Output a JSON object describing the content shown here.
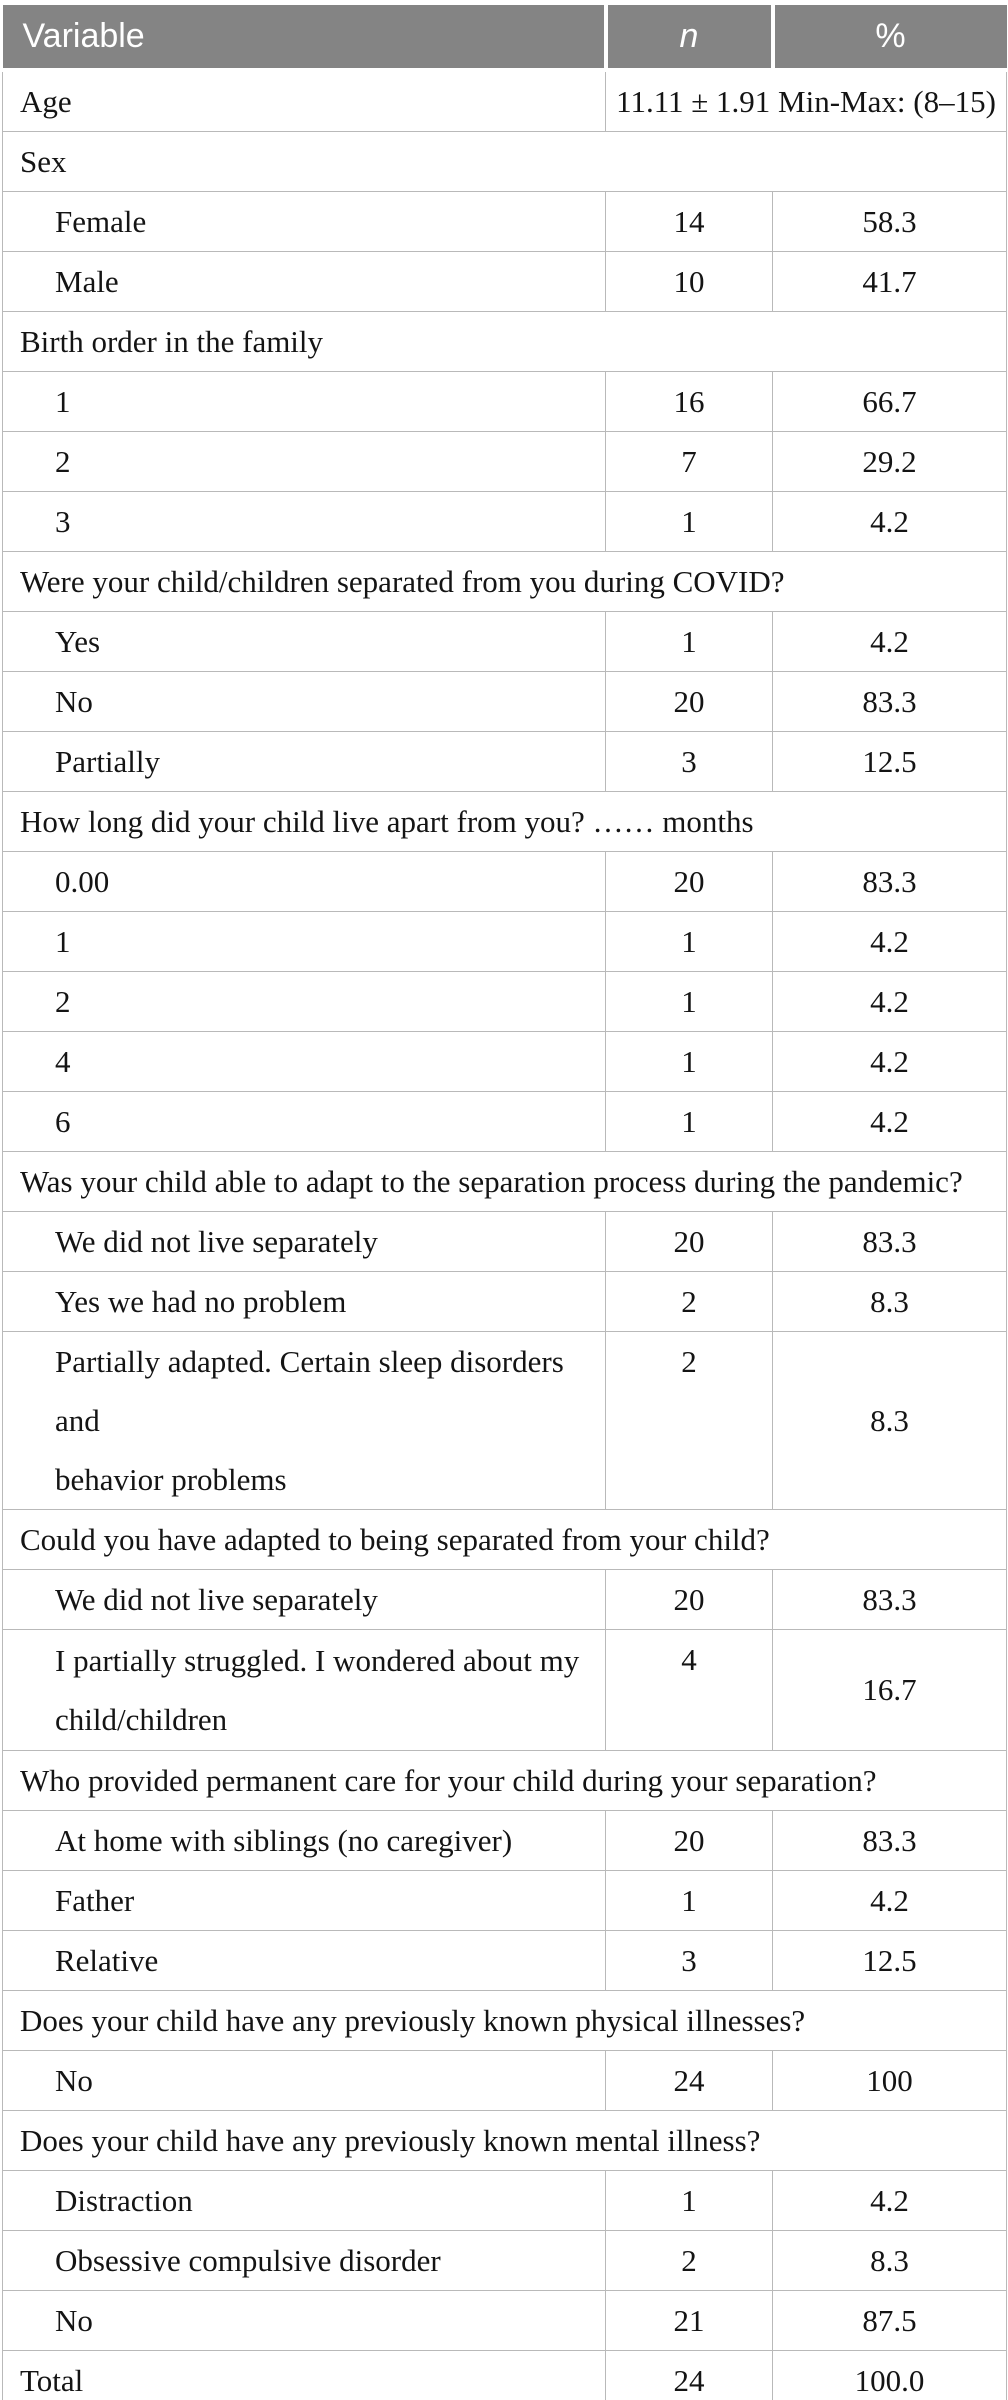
{
  "colors": {
    "header_bg": "#848484",
    "header_text": "#ffffff",
    "border": "#b9b9b9",
    "text": "#141414",
    "page_bg": "#ffffff"
  },
  "table": {
    "headers": {
      "variable": "Variable",
      "n": "n",
      "pct": "%"
    },
    "rows": [
      {
        "type": "age",
        "label": "Age",
        "value": "11.11 ± 1.91 Min-Max: (8–15)"
      },
      {
        "type": "section",
        "label": "Sex"
      },
      {
        "type": "item",
        "label": "Female",
        "n": "14",
        "pct": "58.3"
      },
      {
        "type": "item",
        "label": "Male",
        "n": "10",
        "pct": "41.7"
      },
      {
        "type": "section",
        "label": "Birth order in the family"
      },
      {
        "type": "item",
        "label": "1",
        "n": "16",
        "pct": "66.7"
      },
      {
        "type": "item",
        "label": "2",
        "n": "7",
        "pct": "29.2"
      },
      {
        "type": "item",
        "label": "3",
        "n": "1",
        "pct": "4.2"
      },
      {
        "type": "section",
        "label": "Were your child/children separated from you during COVID?"
      },
      {
        "type": "item",
        "label": "Yes",
        "n": "1",
        "pct": "4.2"
      },
      {
        "type": "item",
        "label": "No",
        "n": "20",
        "pct": "83.3"
      },
      {
        "type": "item",
        "label": "Partially",
        "n": "3",
        "pct": "12.5"
      },
      {
        "type": "section",
        "label": "How long did your child live apart from you? …… months"
      },
      {
        "type": "item",
        "label": "0.00",
        "n": "20",
        "pct": "83.3"
      },
      {
        "type": "item",
        "label": "1",
        "n": "1",
        "pct": "4.2"
      },
      {
        "type": "item",
        "label": "2",
        "n": "1",
        "pct": "4.2"
      },
      {
        "type": "item",
        "label": "4",
        "n": "1",
        "pct": "4.2"
      },
      {
        "type": "item",
        "label": "6",
        "n": "1",
        "pct": "4.2"
      },
      {
        "type": "section",
        "label": "Was your child able to adapt to the separation process during the pandemic?"
      },
      {
        "type": "item",
        "label": "We did not live separately",
        "n": "20",
        "pct": "83.3"
      },
      {
        "type": "item",
        "label": "Yes we had no problem",
        "n": "2",
        "pct": "8.3"
      },
      {
        "type": "item",
        "tall": true,
        "label": "Partially adapted. Certain sleep disorders and\nbehavior problems",
        "n": "2",
        "pct": "8.3"
      },
      {
        "type": "section",
        "label": "Could you have adapted to being separated from your child?"
      },
      {
        "type": "item",
        "label": "We did not live separately",
        "n": "20",
        "pct": "83.3"
      },
      {
        "type": "item",
        "tall": true,
        "label": "I partially struggled. I wondered about my\nchild/children",
        "n": "4",
        "pct": "16.7"
      },
      {
        "type": "section",
        "label": "Who provided permanent care for your child during your separation?"
      },
      {
        "type": "item",
        "label": "At home with siblings (no caregiver)",
        "n": "20",
        "pct": "83.3"
      },
      {
        "type": "item",
        "label": "Father",
        "n": "1",
        "pct": "4.2"
      },
      {
        "type": "item",
        "label": "Relative",
        "n": "3",
        "pct": "12.5"
      },
      {
        "type": "section",
        "label": "Does your child have any previously known physical illnesses?"
      },
      {
        "type": "item",
        "label": "No",
        "n": "24",
        "pct": "100"
      },
      {
        "type": "section",
        "label": "Does your child have any previously known mental illness?"
      },
      {
        "type": "item",
        "label": "Distraction",
        "n": "1",
        "pct": "4.2"
      },
      {
        "type": "item",
        "label": "Obsessive compulsive disorder",
        "n": "2",
        "pct": "8.3"
      },
      {
        "type": "item",
        "label": "No",
        "n": "21",
        "pct": "87.5"
      },
      {
        "type": "total",
        "label": "Total",
        "n": "24",
        "pct": "100.0"
      }
    ]
  }
}
